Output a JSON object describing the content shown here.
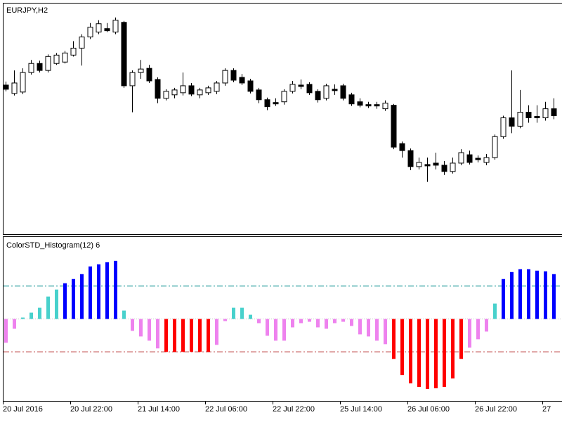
{
  "chart_data": [
    {
      "type": "candlestick",
      "title": "EURJPY,H2",
      "open": [
        214,
        202,
        204,
        232,
        245,
        235,
        245,
        247,
        257,
        267,
        283,
        290,
        295,
        290,
        304,
        213,
        232,
        238,
        222,
        195,
        200,
        203,
        213,
        200,
        203,
        205,
        217,
        235,
        225,
        220,
        207,
        193,
        189,
        190,
        205,
        214,
        215,
        205,
        195,
        208,
        213,
        200,
        190,
        186,
        186,
        180,
        185,
        130,
        120,
        97,
        100,
        102,
        99,
        90,
        102,
        114,
        109,
        103,
        110,
        140,
        167,
        155,
        175,
        169,
        167,
        180
      ],
      "high": [
        219,
        235,
        238,
        250,
        249,
        258,
        260,
        263,
        277,
        287,
        303,
        307,
        303,
        311,
        306,
        235,
        250,
        243,
        225,
        208,
        210,
        232,
        217,
        210,
        213,
        220,
        238,
        238,
        230,
        223,
        210,
        196,
        195,
        208,
        220,
        222,
        218,
        208,
        216,
        215,
        216,
        203,
        195,
        190,
        190,
        192,
        187,
        133,
        123,
        110,
        110,
        117,
        105,
        110,
        122,
        120,
        113,
        115,
        143,
        170,
        235,
        207,
        185,
        185,
        190,
        195
      ],
      "low": [
        205,
        199,
        201,
        229,
        232,
        232,
        243,
        245,
        255,
        242,
        280,
        287,
        290,
        287,
        210,
        175,
        223,
        217,
        188,
        192,
        195,
        199,
        198,
        195,
        200,
        201,
        213,
        218,
        214,
        202,
        188,
        178,
        184,
        186,
        202,
        208,
        200,
        189,
        192,
        200,
        192,
        184,
        182,
        181,
        180,
        177,
        122,
        110,
        92,
        93,
        75,
        93,
        85,
        87,
        99,
        100,
        103,
        99,
        107,
        137,
        145,
        152,
        160,
        160,
        163,
        165
      ],
      "close": [
        208,
        217,
        232,
        245,
        235,
        255,
        257,
        260,
        267,
        283,
        297,
        302,
        292,
        307,
        213,
        232,
        237,
        220,
        195,
        205,
        207,
        213,
        201,
        207,
        210,
        217,
        235,
        221,
        217,
        205,
        193,
        183,
        187,
        205,
        215,
        212,
        203,
        193,
        213,
        206,
        195,
        187,
        185,
        184,
        184,
        188,
        125,
        120,
        97,
        103,
        98,
        99,
        90,
        102,
        117,
        103,
        107,
        110,
        140,
        167,
        155,
        175,
        167,
        167,
        180,
        170
      ],
      "ylim": [
        0,
        330
      ],
      "colors": {
        "up": "#ffffff",
        "down": "#000000",
        "outline": "#000000"
      }
    },
    {
      "type": "bar",
      "title": "ColorSTD_Histogram(12) 6",
      "categories": [
        "20 Jul 2016",
        null,
        null,
        null,
        null,
        null,
        null,
        null,
        "20 Jul 22:00",
        null,
        null,
        null,
        null,
        null,
        null,
        null,
        "21 Jul 14:00",
        null,
        null,
        null,
        null,
        null,
        null,
        null,
        "22 Jul 06:00",
        null,
        null,
        null,
        null,
        null,
        null,
        null,
        "22 Jul 22:00",
        null,
        null,
        null,
        null,
        null,
        null,
        null,
        "25 Jul 14:00",
        null,
        null,
        null,
        null,
        null,
        null,
        null,
        "26 Jul 06:00",
        null,
        null,
        null,
        null,
        null,
        null,
        null,
        "26 Jul 22:00",
        null,
        null,
        null,
        null,
        null,
        null,
        null,
        "27",
        null
      ],
      "values": [
        -34,
        -14,
        2,
        9,
        16,
        32,
        42,
        51,
        57,
        64,
        75,
        78,
        81,
        83,
        12,
        -17,
        -25,
        -31,
        -42,
        -47,
        -47,
        -47,
        -47,
        -47,
        -47,
        -37,
        -3,
        16,
        16,
        6,
        -6,
        -24,
        -31,
        -31,
        -12,
        -6,
        -4,
        -12,
        -14,
        -6,
        -4,
        -10,
        -22,
        -25,
        -31,
        -36,
        -57,
        -80,
        -92,
        -97,
        -100,
        -99,
        -97,
        -85,
        -57,
        -41,
        -29,
        -18,
        22,
        57,
        67,
        71,
        71,
        69,
        68,
        64
      ],
      "levels": [
        47,
        -47
      ],
      "level_colors": [
        "#008b8b",
        "#b22222"
      ],
      "ylim": [
        -117,
        116
      ],
      "colors": {
        "strong_up": "#0000ff",
        "up": "#48d1cc",
        "down": "#ee82ee",
        "strong_down": "#ff0000"
      }
    }
  ]
}
